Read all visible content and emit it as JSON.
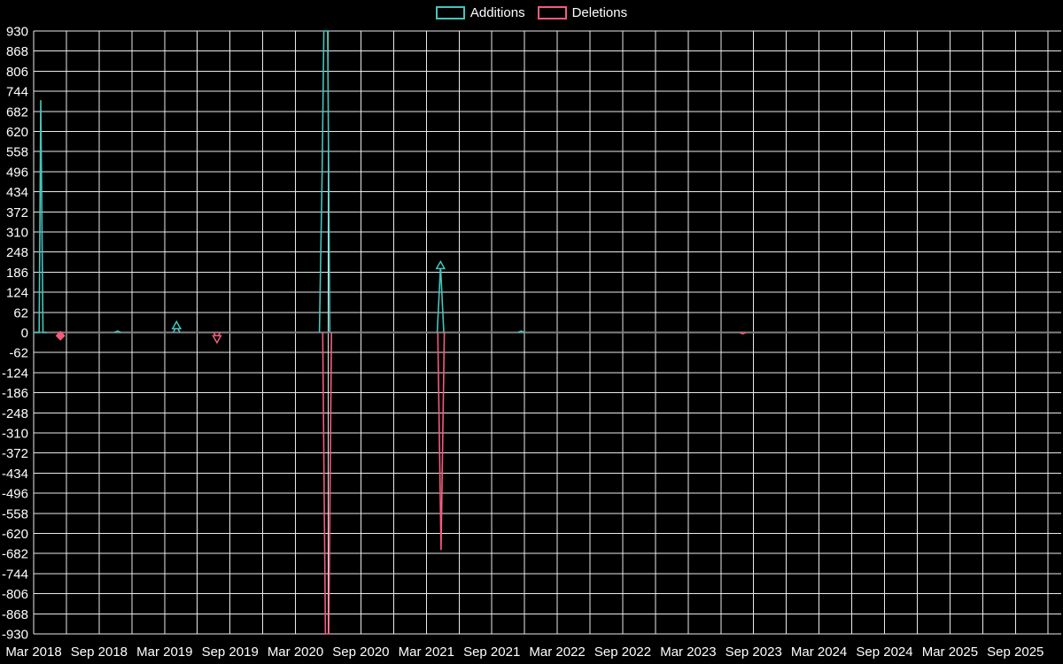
{
  "legend": {
    "items": [
      {
        "label": "Additions",
        "color": "#45c5bc"
      },
      {
        "label": "Deletions",
        "color": "#f35c7e"
      }
    ]
  },
  "chart_data": {
    "type": "line",
    "description": "Weekly code additions (positive) and deletions (negative) over time",
    "legend_position": "top-center",
    "grid": "on",
    "colors": {
      "background": "#000000",
      "grid": "#eaeaea",
      "zero_line": "#808080",
      "text": "#ffffff",
      "additions": "#45c5bc",
      "deletions": "#f35c7e"
    },
    "x_axis": {
      "range_months": [
        0,
        94.2
      ],
      "grid_step_months": 3,
      "ticks": [
        {
          "label": "Mar 2018",
          "month": 0
        },
        {
          "label": "Sep 2018",
          "month": 6
        },
        {
          "label": "Mar 2019",
          "month": 12
        },
        {
          "label": "Sep 2019",
          "month": 18
        },
        {
          "label": "Mar 2020",
          "month": 24
        },
        {
          "label": "Sep 2020",
          "month": 30
        },
        {
          "label": "Mar 2021",
          "month": 36
        },
        {
          "label": "Sep 2021",
          "month": 42
        },
        {
          "label": "Mar 2022",
          "month": 48
        },
        {
          "label": "Sep 2022",
          "month": 54
        },
        {
          "label": "Mar 2023",
          "month": 60
        },
        {
          "label": "Sep 2023",
          "month": 66
        },
        {
          "label": "Mar 2024",
          "month": 72
        },
        {
          "label": "Sep 2024",
          "month": 78
        },
        {
          "label": "Mar 2025",
          "month": 84
        },
        {
          "label": "Sep 2025",
          "month": 90
        }
      ]
    },
    "y_axis": {
      "min": -930,
      "max": 930,
      "tick_step": 62,
      "tick_values": [
        930,
        868,
        806,
        744,
        682,
        620,
        558,
        496,
        434,
        372,
        310,
        248,
        186,
        124,
        62,
        0,
        -62,
        -124,
        -186,
        -248,
        -310,
        -372,
        -434,
        -496,
        -558,
        -620,
        -682,
        -744,
        -806,
        -868,
        -930
      ]
    },
    "series": [
      {
        "name": "Additions",
        "color": "#45c5bc",
        "segments": [
          [
            [
              0,
              0
            ],
            [
              0.5,
              0
            ],
            [
              0.65,
              715
            ],
            [
              0.85,
              0
            ],
            [
              1.2,
              0
            ]
          ],
          [
            [
              7.4,
              0
            ],
            [
              7.7,
              4
            ],
            [
              8.0,
              0
            ]
          ],
          [
            [
              12.8,
              0
            ],
            [
              13.1,
              20
            ],
            [
              13.4,
              0
            ]
          ],
          [
            [
              26.2,
              0
            ],
            [
              26.45,
              500
            ],
            [
              26.6,
              930
            ],
            [
              26.95,
              930
            ],
            [
              27.15,
              0
            ]
          ],
          [
            [
              37.0,
              0
            ],
            [
              37.3,
              205
            ],
            [
              37.6,
              0
            ]
          ],
          [
            [
              44.4,
              0
            ],
            [
              44.7,
              4
            ],
            [
              45.0,
              0
            ]
          ]
        ]
      },
      {
        "name": "Deletions",
        "color": "#f35c7e",
        "segments": [
          [
            [
              2.2,
              0
            ],
            [
              2.45,
              -10
            ],
            [
              2.7,
              0
            ]
          ],
          [
            [
              16.5,
              0
            ],
            [
              16.8,
              -18
            ],
            [
              17.1,
              0
            ]
          ],
          [
            [
              26.5,
              0
            ],
            [
              26.75,
              -930
            ],
            [
              27.05,
              -930
            ],
            [
              27.3,
              0
            ]
          ],
          [
            [
              37.05,
              0
            ],
            [
              37.35,
              -670
            ],
            [
              37.65,
              0
            ]
          ],
          [
            [
              64.7,
              0
            ],
            [
              65.0,
              -4
            ],
            [
              65.3,
              0
            ]
          ]
        ]
      }
    ],
    "markers": [
      {
        "series": 0,
        "month": 13.1,
        "value": 20,
        "shape": "triangle-up",
        "fill": "open"
      },
      {
        "series": 0,
        "month": 37.3,
        "value": 205,
        "shape": "triangle-up",
        "fill": "open"
      },
      {
        "series": 1,
        "month": 2.45,
        "value": -10,
        "shape": "diamond",
        "fill": "solid"
      },
      {
        "series": 1,
        "month": 16.8,
        "value": -18,
        "shape": "triangle-down",
        "fill": "open"
      }
    ]
  }
}
